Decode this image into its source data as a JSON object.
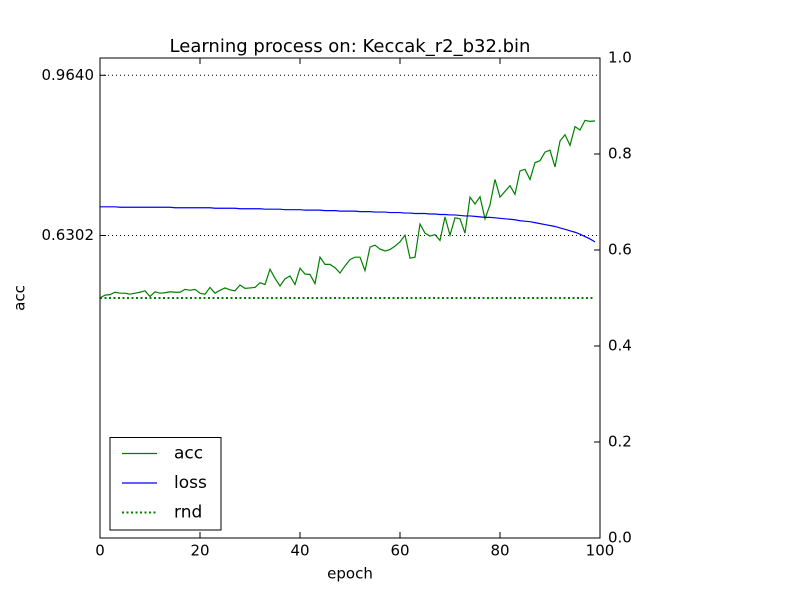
{
  "chart_data": {
    "type": "line",
    "title": "Learning process on: Keccak_r2_b32.bin",
    "xlabel": "epoch",
    "ylabel": "acc",
    "x": [
      0,
      1,
      2,
      3,
      4,
      5,
      6,
      7,
      8,
      9,
      10,
      11,
      12,
      13,
      14,
      15,
      16,
      17,
      18,
      19,
      20,
      21,
      22,
      23,
      24,
      25,
      26,
      27,
      28,
      29,
      30,
      31,
      32,
      33,
      34,
      35,
      36,
      37,
      38,
      39,
      40,
      41,
      42,
      43,
      44,
      45,
      46,
      47,
      48,
      49,
      50,
      51,
      52,
      53,
      54,
      55,
      56,
      57,
      58,
      59,
      60,
      61,
      62,
      63,
      64,
      65,
      66,
      67,
      68,
      69,
      70,
      71,
      72,
      73,
      74,
      75,
      76,
      77,
      78,
      79,
      80,
      81,
      82,
      83,
      84,
      85,
      86,
      87,
      88,
      89,
      90,
      91,
      92,
      93,
      94,
      95,
      96,
      97,
      98,
      99
    ],
    "series": [
      {
        "name": "acc",
        "color": "#008000",
        "style": "solid",
        "values": [
          0.5,
          0.506,
          0.507,
          0.512,
          0.51,
          0.51,
          0.508,
          0.51,
          0.512,
          0.515,
          0.503,
          0.513,
          0.51,
          0.511,
          0.513,
          0.512,
          0.512,
          0.518,
          0.516,
          0.518,
          0.51,
          0.508,
          0.522,
          0.51,
          0.516,
          0.521,
          0.517,
          0.515,
          0.527,
          0.52,
          0.521,
          0.522,
          0.532,
          0.528,
          0.56,
          0.541,
          0.525,
          0.54,
          0.546,
          0.528,
          0.562,
          0.55,
          0.549,
          0.53,
          0.585,
          0.57,
          0.57,
          0.563,
          0.552,
          0.567,
          0.58,
          0.585,
          0.585,
          0.557,
          0.606,
          0.61,
          0.602,
          0.598,
          0.601,
          0.608,
          0.617,
          0.631,
          0.583,
          0.585,
          0.654,
          0.635,
          0.629,
          0.632,
          0.62,
          0.669,
          0.631,
          0.667,
          0.665,
          0.635,
          0.71,
          0.696,
          0.711,
          0.665,
          0.694,
          0.747,
          0.71,
          0.722,
          0.734,
          0.716,
          0.765,
          0.768,
          0.747,
          0.782,
          0.786,
          0.804,
          0.808,
          0.773,
          0.827,
          0.84,
          0.818,
          0.857,
          0.85,
          0.87,
          0.868,
          0.869
        ]
      },
      {
        "name": "loss",
        "color": "#0000ff",
        "style": "solid",
        "axis": "y2",
        "values": [
          0.69,
          0.69,
          0.69,
          0.69,
          0.689,
          0.689,
          0.689,
          0.689,
          0.689,
          0.689,
          0.689,
          0.689,
          0.689,
          0.689,
          0.689,
          0.688,
          0.688,
          0.688,
          0.688,
          0.688,
          0.688,
          0.688,
          0.688,
          0.687,
          0.687,
          0.687,
          0.687,
          0.687,
          0.686,
          0.686,
          0.686,
          0.686,
          0.686,
          0.685,
          0.685,
          0.685,
          0.685,
          0.684,
          0.684,
          0.684,
          0.684,
          0.683,
          0.683,
          0.683,
          0.683,
          0.682,
          0.682,
          0.682,
          0.681,
          0.681,
          0.681,
          0.681,
          0.68,
          0.68,
          0.68,
          0.679,
          0.679,
          0.679,
          0.678,
          0.678,
          0.678,
          0.677,
          0.677,
          0.676,
          0.676,
          0.676,
          0.675,
          0.675,
          0.674,
          0.674,
          0.673,
          0.673,
          0.672,
          0.671,
          0.671,
          0.67,
          0.669,
          0.668,
          0.668,
          0.667,
          0.666,
          0.665,
          0.664,
          0.663,
          0.661,
          0.66,
          0.659,
          0.657,
          0.655,
          0.653,
          0.651,
          0.649,
          0.646,
          0.643,
          0.64,
          0.637,
          0.633,
          0.628,
          0.623,
          0.617
        ]
      },
      {
        "name": "rnd",
        "color": "#008000",
        "style": "dotted",
        "values": [
          0.5,
          0.5,
          0.5,
          0.5,
          0.5,
          0.5,
          0.5,
          0.5,
          0.5,
          0.5,
          0.5,
          0.5,
          0.5,
          0.5,
          0.5,
          0.5,
          0.5,
          0.5,
          0.5,
          0.5,
          0.5,
          0.5,
          0.5,
          0.5,
          0.5,
          0.5,
          0.5,
          0.5,
          0.5,
          0.5,
          0.5,
          0.5,
          0.5,
          0.5,
          0.5,
          0.5,
          0.5,
          0.5,
          0.5,
          0.5,
          0.5,
          0.5,
          0.5,
          0.5,
          0.5,
          0.5,
          0.5,
          0.5,
          0.5,
          0.5,
          0.5,
          0.5,
          0.5,
          0.5,
          0.5,
          0.5,
          0.5,
          0.5,
          0.5,
          0.5,
          0.5,
          0.5,
          0.5,
          0.5,
          0.5,
          0.5,
          0.5,
          0.5,
          0.5,
          0.5,
          0.5,
          0.5,
          0.5,
          0.5,
          0.5,
          0.5,
          0.5,
          0.5,
          0.5,
          0.5,
          0.5,
          0.5,
          0.5,
          0.5,
          0.5,
          0.5,
          0.5,
          0.5,
          0.5,
          0.5,
          0.5,
          0.5,
          0.5,
          0.5,
          0.5,
          0.5,
          0.5,
          0.5,
          0.5,
          0.5
        ]
      }
    ],
    "xlim": [
      0,
      100
    ],
    "xticks": [
      0,
      20,
      40,
      60,
      80,
      100
    ],
    "ylim": [
      0,
      1
    ],
    "yticks": [
      0.6302,
      {
        "value": 0.964,
        "label": "0.9640"
      }
    ],
    "y2lim": [
      0,
      1
    ],
    "y2ticks": [
      {
        "value": 0,
        "label": "0.0"
      },
      0.2,
      0.4,
      0.6,
      0.8,
      {
        "value": 1,
        "label": "1.0"
      }
    ],
    "grid": true,
    "legend": "lower left"
  }
}
